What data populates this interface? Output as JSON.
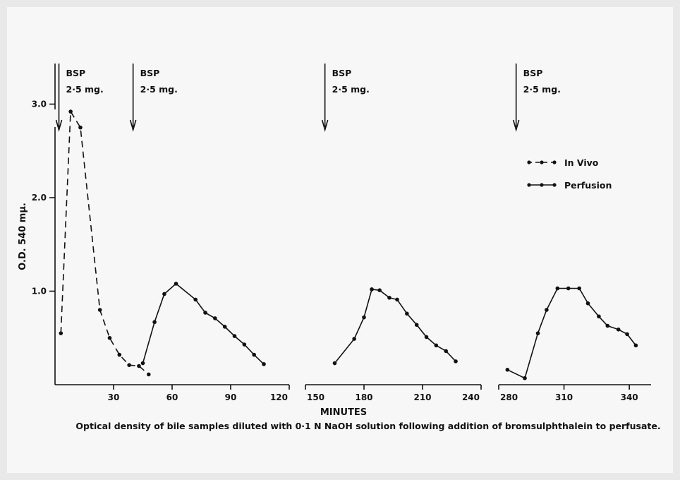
{
  "chart_data": {
    "type": "line",
    "caption": "Optical density of bile samples diluted with 0·1 N NaOH solution following addition of bromsulphthalein to perfusate.",
    "xlabel": "MINUTES",
    "ylabel": "O.D. 540 mμ.",
    "y_ticks": [
      "1.0",
      "2.0",
      "3.0"
    ],
    "ylim": [
      0,
      3.3
    ],
    "legend": {
      "position": "top-right",
      "entries": [
        {
          "label": "In Vivo",
          "style": "dashed"
        },
        {
          "label": "Perfusion",
          "style": "solid"
        }
      ]
    },
    "panels": [
      {
        "xlim": [
          0,
          120
        ],
        "tick_values": [
          30,
          60,
          90,
          120
        ]
      },
      {
        "xlim": [
          150,
          240
        ],
        "tick_values": [
          150,
          180,
          210,
          240
        ]
      },
      {
        "xlim": [
          280,
          350
        ],
        "tick_values": [
          280,
          310,
          340
        ]
      }
    ],
    "annotations": [
      {
        "x": 2,
        "line1": "BSP",
        "line2": "2·5 mg."
      },
      {
        "x": 40,
        "line1": "BSP",
        "line2": "2·5 mg."
      },
      {
        "x": 160,
        "line1": "BSP",
        "line2": "2·5 mg."
      },
      {
        "x": 288,
        "line1": "BSP",
        "line2": "2·5 mg."
      }
    ],
    "series": [
      {
        "name": "In Vivo",
        "style": "dashed",
        "x": [
          3,
          8,
          13,
          23,
          28,
          33,
          38,
          43,
          48
        ],
        "y": [
          0.55,
          2.92,
          2.75,
          0.8,
          0.5,
          0.32,
          0.21,
          0.2,
          0.11
        ]
      },
      {
        "name": "Perfusion",
        "style": "solid",
        "segments": [
          {
            "x": [
              45,
              51,
              56,
              62,
              72,
              77,
              82,
              87,
              92,
              97,
              102,
              107
            ],
            "y": [
              0.23,
              0.67,
              0.97,
              1.08,
              0.91,
              0.77,
              0.71,
              0.62,
              0.52,
              0.43,
              0.32,
              0.22
            ]
          },
          {
            "x": [
              165,
              175,
              180,
              184,
              188,
              193,
              197,
              202,
              207,
              212,
              217,
              222,
              227
            ],
            "y": [
              0.23,
              0.49,
              0.72,
              1.02,
              1.01,
              0.93,
              0.91,
              0.76,
              0.64,
              0.51,
              0.42,
              0.36,
              0.25
            ]
          },
          {
            "x": [
              284,
              292,
              298,
              302,
              307,
              312,
              317,
              321,
              326,
              330,
              335,
              339,
              343
            ],
            "y": [
              0.16,
              0.07,
              0.55,
              0.8,
              1.03,
              1.03,
              1.03,
              0.87,
              0.73,
              0.63,
              0.59,
              0.54,
              0.42
            ]
          }
        ]
      }
    ]
  }
}
